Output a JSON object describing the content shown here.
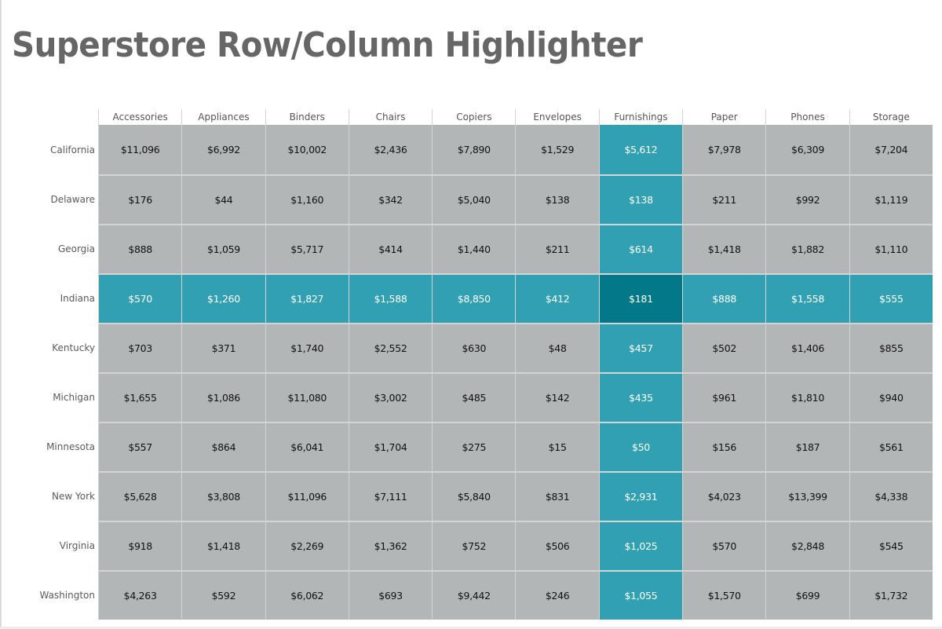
{
  "title": "Superstore Row/Column Highlighter",
  "colors": {
    "cell_default": "#b3b6b7",
    "highlight": "#31a0b3",
    "highlight_intersection": "#037888",
    "gridline": "#d4d4d4",
    "title": "#666666"
  },
  "highlight": {
    "row": "Indiana",
    "column": "Furnishings"
  },
  "columns": [
    "Accessories",
    "Appliances",
    "Binders",
    "Chairs",
    "Copiers",
    "Envelopes",
    "Furnishings",
    "Paper",
    "Phones",
    "Storage"
  ],
  "rows": [
    {
      "label": "California",
      "values": [
        "$11,096",
        "$6,992",
        "$10,002",
        "$2,436",
        "$7,890",
        "$1,529",
        "$5,612",
        "$7,978",
        "$6,309",
        "$7,204"
      ]
    },
    {
      "label": "Delaware",
      "values": [
        "$176",
        "$44",
        "$1,160",
        "$342",
        "$5,040",
        "$138",
        "$138",
        "$211",
        "$992",
        "$1,119"
      ]
    },
    {
      "label": "Georgia",
      "values": [
        "$888",
        "$1,059",
        "$5,717",
        "$414",
        "$1,440",
        "$211",
        "$614",
        "$1,418",
        "$1,882",
        "$1,110"
      ]
    },
    {
      "label": "Indiana",
      "values": [
        "$570",
        "$1,260",
        "$1,827",
        "$1,588",
        "$8,850",
        "$412",
        "$181",
        "$888",
        "$1,558",
        "$555"
      ]
    },
    {
      "label": "Kentucky",
      "values": [
        "$703",
        "$371",
        "$1,740",
        "$2,552",
        "$630",
        "$48",
        "$457",
        "$502",
        "$1,406",
        "$855"
      ]
    },
    {
      "label": "Michigan",
      "values": [
        "$1,655",
        "$1,086",
        "$11,080",
        "$3,002",
        "$485",
        "$142",
        "$435",
        "$961",
        "$1,810",
        "$940"
      ]
    },
    {
      "label": "Minnesota",
      "values": [
        "$557",
        "$864",
        "$6,041",
        "$1,704",
        "$275",
        "$15",
        "$50",
        "$156",
        "$187",
        "$561"
      ]
    },
    {
      "label": "New York",
      "values": [
        "$5,628",
        "$3,808",
        "$11,096",
        "$7,111",
        "$5,840",
        "$831",
        "$2,931",
        "$4,023",
        "$13,399",
        "$4,338"
      ]
    },
    {
      "label": "Virginia",
      "values": [
        "$918",
        "$1,418",
        "$2,269",
        "$1,362",
        "$752",
        "$506",
        "$1,025",
        "$570",
        "$2,848",
        "$545"
      ]
    },
    {
      "label": "Washington",
      "values": [
        "$4,263",
        "$592",
        "$6,062",
        "$693",
        "$9,442",
        "$246",
        "$1,055",
        "$1,570",
        "$699",
        "$1,732"
      ]
    }
  ],
  "chart_data": {
    "type": "heatmap",
    "title": "Superstore Row/Column Highlighter",
    "xlabel": "",
    "ylabel": "",
    "x": [
      "Accessories",
      "Appliances",
      "Binders",
      "Chairs",
      "Copiers",
      "Envelopes",
      "Furnishings",
      "Paper",
      "Phones",
      "Storage"
    ],
    "y": [
      "California",
      "Delaware",
      "Georgia",
      "Indiana",
      "Kentucky",
      "Michigan",
      "Minnesota",
      "New York",
      "Virginia",
      "Washington"
    ],
    "values": [
      [
        11096,
        6992,
        10002,
        2436,
        7890,
        1529,
        5612,
        7978,
        6309,
        7204
      ],
      [
        176,
        44,
        1160,
        342,
        5040,
        138,
        138,
        211,
        992,
        1119
      ],
      [
        888,
        1059,
        5717,
        414,
        1440,
        211,
        614,
        1418,
        1882,
        1110
      ],
      [
        570,
        1260,
        1827,
        1588,
        8850,
        412,
        181,
        888,
        1558,
        555
      ],
      [
        703,
        371,
        1740,
        2552,
        630,
        48,
        457,
        502,
        1406,
        855
      ],
      [
        1655,
        1086,
        11080,
        3002,
        485,
        142,
        435,
        961,
        1810,
        940
      ],
      [
        557,
        864,
        6041,
        1704,
        275,
        15,
        50,
        156,
        187,
        561
      ],
      [
        5628,
        3808,
        11096,
        7111,
        5840,
        831,
        2931,
        4023,
        13399,
        4338
      ],
      [
        918,
        1418,
        2269,
        1362,
        752,
        506,
        1025,
        570,
        2848,
        545
      ],
      [
        4263,
        592,
        6062,
        693,
        9442,
        246,
        1055,
        1570,
        699,
        1732
      ]
    ],
    "highlighted_row": "Indiana",
    "highlighted_column": "Furnishings",
    "value_format": "currency USD, no decimals",
    "legend": "none",
    "grid": true
  }
}
